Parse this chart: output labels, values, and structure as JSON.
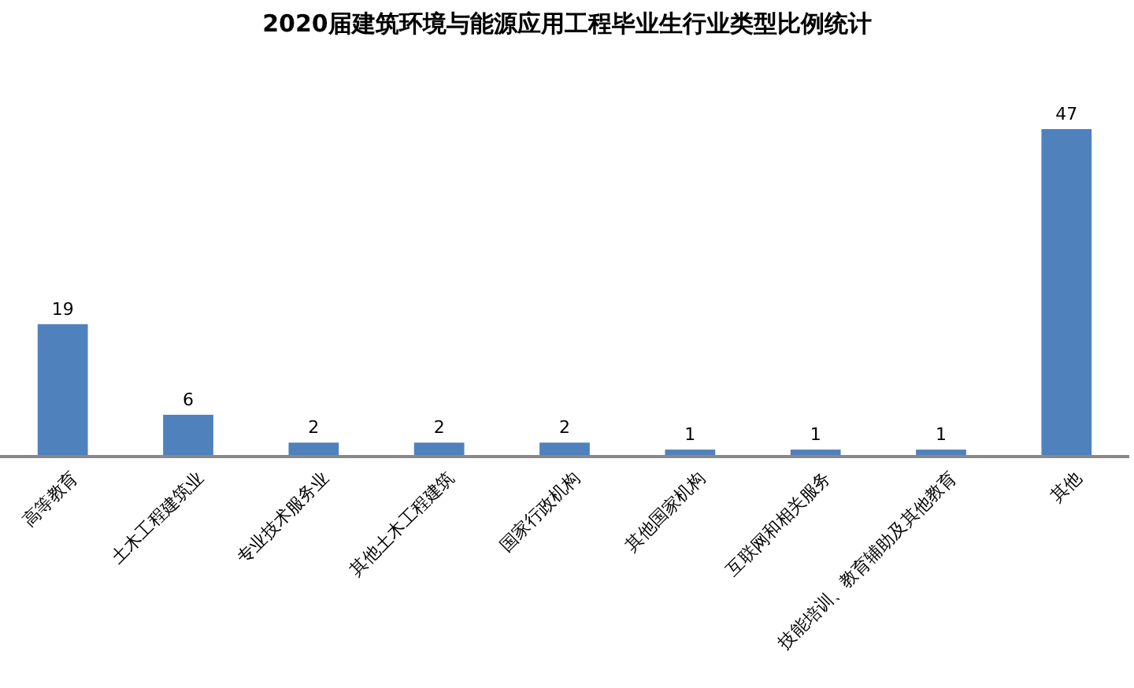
{
  "chart_data": {
    "type": "bar",
    "title": "2020届建筑环境与能源应用工程毕业生行业类型比例统计",
    "categories": [
      "高等教育",
      "土木工程建筑业",
      "专业技术服务业",
      "其他土木工程建筑",
      "国家行政机构",
      "其他国家机构",
      "互联网和相关服务",
      "技能培训、教育辅助及其他教育",
      "其他"
    ],
    "values": [
      19,
      6,
      2,
      2,
      2,
      1,
      1,
      1,
      47
    ],
    "color": "#4f81bd",
    "data_labels": true
  }
}
